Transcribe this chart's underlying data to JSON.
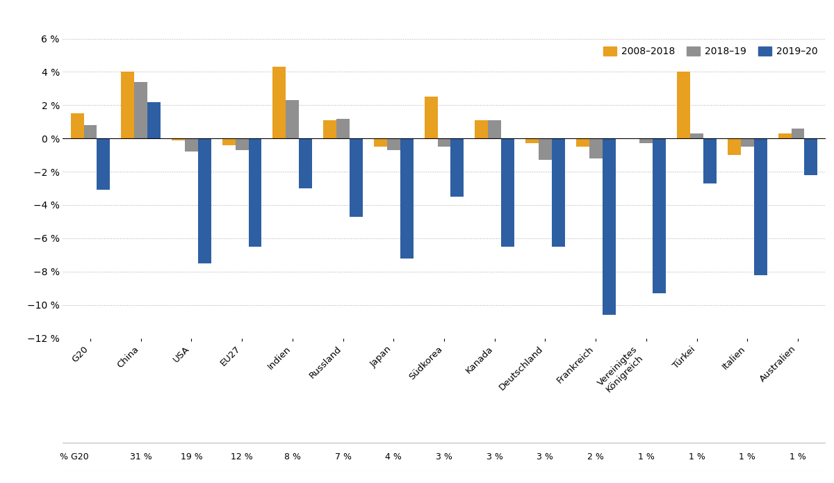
{
  "categories": [
    "G20",
    "China",
    "USA",
    "EU27",
    "Indien",
    "Russland",
    "Japan",
    "Südkorea",
    "Kanada",
    "Deutschland",
    "Frankreich",
    "Vereinigtes\nKönigreich",
    "Türkei",
    "Italien",
    "Australien"
  ],
  "pct_g20": [
    "",
    "31 %",
    "19 %",
    "12 %",
    "8 %",
    "7 %",
    "4 %",
    "3 %",
    "3 %",
    "3 %",
    "2 %",
    "1 %",
    "1 %",
    "1 %",
    "1 %"
  ],
  "series": {
    "2008–2018": [
      1.5,
      4.0,
      -0.1,
      -0.4,
      4.3,
      1.1,
      -0.5,
      2.5,
      1.1,
      -0.3,
      -0.5,
      0.0,
      4.0,
      -1.0,
      0.3
    ],
    "2018–19": [
      0.8,
      3.4,
      -0.8,
      -0.7,
      2.3,
      1.2,
      -0.7,
      -0.5,
      1.1,
      -1.3,
      -1.2,
      -0.3,
      0.3,
      -0.5,
      0.6
    ],
    "2019–20": [
      -3.1,
      2.2,
      -7.5,
      -6.5,
      -3.0,
      -4.7,
      -7.2,
      -3.5,
      -6.5,
      -6.5,
      -10.6,
      -9.3,
      -2.7,
      -8.2,
      -2.2
    ]
  },
  "series_colors": {
    "2008–2018": "#E8A020",
    "2018–19": "#909090",
    "2019–20": "#2E5FA3"
  },
  "ylim": [
    -12,
    6
  ],
  "yticks": [
    -12,
    -10,
    -8,
    -6,
    -4,
    -2,
    0,
    2,
    4,
    6
  ],
  "background_color": "#FFFFFF",
  "footer_bg": "#F2E0BC",
  "grid_color": "#AAAAAA",
  "bar_width": 0.26,
  "legend_labels": [
    "2008–2018",
    "2018–19",
    "2019–20"
  ],
  "xlabel_fontsize": 9.5,
  "ylabel_fontsize": 10,
  "legend_fontsize": 10
}
